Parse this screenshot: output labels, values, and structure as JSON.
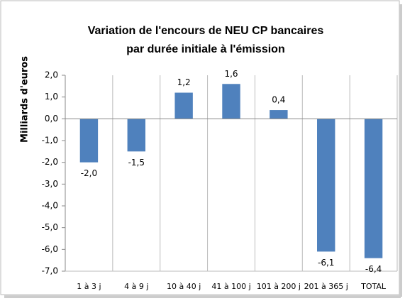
{
  "chart_data": {
    "type": "bar",
    "title": [
      "Variation de l'encours de NEU CP bancaires",
      "par durée initiale à l'émission"
    ],
    "y_label": "Milliards d'euros",
    "categories": [
      "1 à 3 j",
      "4 à 9 j",
      "10 à 40 j",
      "41 à 100 j",
      "101 à 200 j",
      "201 à 365 j",
      "TOTAL"
    ],
    "values": [
      -2.0,
      -1.5,
      1.2,
      1.6,
      0.4,
      -6.1,
      -6.4
    ],
    "value_labels": [
      "-2,0",
      "-1,5",
      "1,2",
      "1,6",
      "0,4",
      "-6,1",
      "-6,4"
    ],
    "color": "#4f81bd",
    "ylim": [
      -7,
      2
    ],
    "yticks": [
      {
        "value": 2,
        "label": "2,0"
      },
      {
        "value": 1,
        "label": "1,0"
      },
      {
        "value": 0,
        "label": "0,0"
      },
      {
        "value": -1,
        "label": "-1,0"
      },
      {
        "value": -2,
        "label": "-2,0"
      },
      {
        "value": -3,
        "label": "-3,0"
      },
      {
        "value": -4,
        "label": "-4,0"
      },
      {
        "value": -5,
        "label": "-5,0"
      },
      {
        "value": -6,
        "label": "-6,0"
      },
      {
        "value": -7,
        "label": "-7,0"
      }
    ],
    "grid": true
  }
}
